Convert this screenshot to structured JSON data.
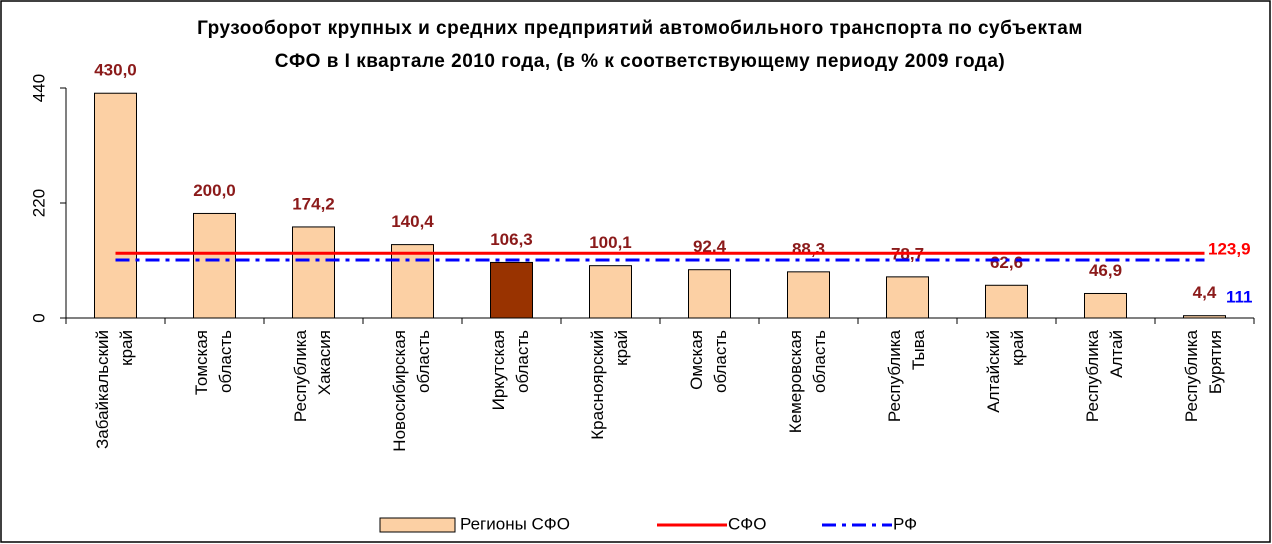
{
  "chart_data": {
    "type": "bar",
    "title": "Грузооборот крупных и средних предприятий автомобильного транспорта по субъектам СФО в I квартале 2010 года, (в % к соответствующему периоду 2009 года)",
    "categories": [
      [
        "Забайкальский",
        "край"
      ],
      [
        "Томская",
        "область"
      ],
      [
        "Республика",
        "Хакасия"
      ],
      [
        "Новосибирская",
        "область"
      ],
      [
        "Иркутская",
        "область"
      ],
      [
        "Красноярский",
        "край"
      ],
      [
        "Омская",
        "область"
      ],
      [
        "Кемеровская",
        "область"
      ],
      [
        "Республика",
        "Тыва"
      ],
      [
        "Алтайский",
        "край"
      ],
      [
        "Республика",
        "Алтай"
      ],
      [
        "Республика",
        "Бурятия"
      ]
    ],
    "series": [
      {
        "name": "Регионы СФО",
        "color": "#fcd0a4",
        "colors": [
          "#fcd0a4",
          "#fcd0a4",
          "#fcd0a4",
          "#fcd0a4",
          "#993300",
          "#fcd0a4",
          "#fcd0a4",
          "#fcd0a4",
          "#fcd0a4",
          "#fcd0a4",
          "#fcd0a4",
          "#fcd0a4"
        ],
        "values": [
          430.0,
          200.0,
          174.2,
          140.4,
          106.3,
          100.1,
          92.4,
          88.3,
          78.7,
          62.6,
          46.9,
          4.4
        ],
        "value_labels": [
          "430,0",
          "200,0",
          "174,2",
          "140,4",
          "106,3",
          "100,1",
          "92,4",
          "88,3",
          "78,7",
          "62,6",
          "46,9",
          "4,4"
        ]
      }
    ],
    "lines": [
      {
        "name": "СФО",
        "color": "#ff0000",
        "value": 123.9,
        "value_label": "123,9",
        "dash": false
      },
      {
        "name": "РФ",
        "color": "#0000ff",
        "value": 111,
        "value_label": "111",
        "dash": true
      }
    ],
    "ylim": [
      0,
      440
    ],
    "yticks": [
      0,
      220,
      440
    ]
  }
}
